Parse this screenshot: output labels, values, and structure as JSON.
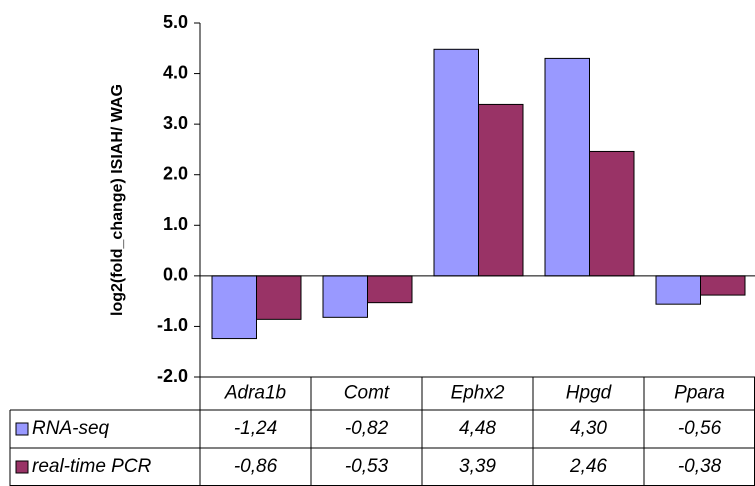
{
  "chart_data": {
    "type": "bar",
    "y_label": "log2(fold_change) ISIAH/ WAG",
    "categories": [
      "Adra1b",
      "Comt",
      "Ephx2",
      "Hpgd",
      "Ppara"
    ],
    "series": [
      {
        "name": "RNA-seq",
        "color": "#9999ff",
        "values": [
          -1.24,
          -0.82,
          4.48,
          4.3,
          -0.56
        ],
        "value_labels": [
          "-1,24",
          "-0,82",
          "4,48",
          "4,30",
          "-0,56"
        ]
      },
      {
        "name": "real-time PCR",
        "color": "#993366",
        "values": [
          -0.86,
          -0.53,
          3.39,
          2.46,
          -0.38
        ],
        "value_labels": [
          "-0,86",
          "-0,53",
          "3,39",
          "2,46",
          "-0,38"
        ]
      }
    ],
    "ylim": [
      -2,
      5
    ],
    "yticks": [
      {
        "value": -2,
        "label": "-2.0"
      },
      {
        "value": -1,
        "label": "-1.0"
      },
      {
        "value": 0,
        "label": "0.0"
      },
      {
        "value": 1,
        "label": "1.0"
      },
      {
        "value": 2,
        "label": "2.0"
      },
      {
        "value": 3,
        "label": "3.0"
      },
      {
        "value": 4,
        "label": "4.0"
      },
      {
        "value": 5,
        "label": "5.0"
      }
    ]
  }
}
